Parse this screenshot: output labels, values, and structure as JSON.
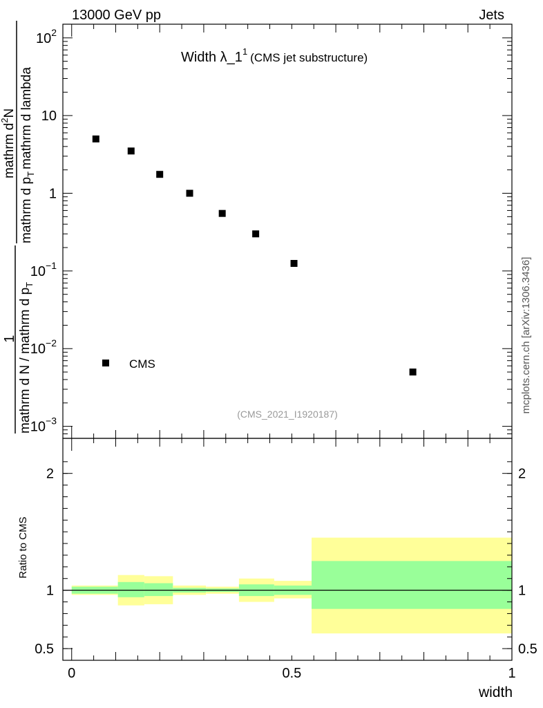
{
  "header": {
    "left": "13000 GeV pp",
    "right": "Jets"
  },
  "plot_title": {
    "main": "Width λ_1",
    "superscript": "1",
    "sub": "(CMS jet substructure)"
  },
  "y_label_upper": {
    "one": "1",
    "denominator": "mathrm d N / mathrm d p",
    "denominator_sub": "T",
    "numerator_prefix": "mathrm d",
    "numerator_sup": "2",
    "numerator_suffix": "N",
    "full_denominator": "mathrm d p",
    "full_denominator_sub": "T",
    "full_denominator_tail": "mathrm d lambda"
  },
  "y_label_lower": "Ratio to CMS",
  "x_label": "width",
  "watermark": "(CMS_2021_I1920187)",
  "side_text": "mcplots.cern.ch [arXiv:1306.3436]",
  "colors": {
    "band_outer": "#ffff99",
    "band_inner": "#99ff99",
    "marker": "#000000"
  },
  "chart_data": {
    "type": "scatter",
    "upper": {
      "y_scale": "log",
      "ylim": [
        0.0007,
        150
      ],
      "xlim": [
        -0.02,
        1.0
      ],
      "series": [
        {
          "name": "CMS",
          "x": [
            0.055,
            0.135,
            0.2,
            0.268,
            0.342,
            0.418,
            0.505,
            0.775
          ],
          "y": [
            5.0,
            3.5,
            1.75,
            1.0,
            0.55,
            0.3,
            0.125,
            0.005
          ]
        }
      ],
      "y_ticks": [
        {
          "value": 100,
          "base": "10",
          "exp": "2"
        },
        {
          "value": 10,
          "base": "10",
          "exp": ""
        },
        {
          "value": 1,
          "base": "1",
          "exp": ""
        },
        {
          "value": 0.1,
          "base": "10",
          "exp": "−1"
        },
        {
          "value": 0.01,
          "base": "10",
          "exp": "−2"
        },
        {
          "value": 0.001,
          "base": "10",
          "exp": "−3"
        }
      ],
      "legend": "CMS",
      "legend_position": "lower-left"
    },
    "lower": {
      "ylim": [
        0.4,
        2.3
      ],
      "y_ticks": [
        {
          "value": 0.5,
          "label": "0.5"
        },
        {
          "value": 1,
          "label": "1"
        },
        {
          "value": 2,
          "label": "2"
        }
      ],
      "bins": [
        {
          "x0": 0.0,
          "x1": 0.105,
          "inner": [
            0.97,
            1.03
          ],
          "outer": [
            0.96,
            1.04
          ]
        },
        {
          "x0": 0.105,
          "x1": 0.165,
          "inner": [
            0.94,
            1.07
          ],
          "outer": [
            0.87,
            1.13
          ]
        },
        {
          "x0": 0.165,
          "x1": 0.23,
          "inner": [
            0.95,
            1.06
          ],
          "outer": [
            0.88,
            1.12
          ]
        },
        {
          "x0": 0.23,
          "x1": 0.305,
          "inner": [
            0.98,
            1.02
          ],
          "outer": [
            0.96,
            1.04
          ]
        },
        {
          "x0": 0.305,
          "x1": 0.38,
          "inner": [
            0.985,
            1.015
          ],
          "outer": [
            0.97,
            1.03
          ]
        },
        {
          "x0": 0.38,
          "x1": 0.46,
          "inner": [
            0.95,
            1.05
          ],
          "outer": [
            0.9,
            1.1
          ]
        },
        {
          "x0": 0.46,
          "x1": 0.545,
          "inner": [
            0.96,
            1.04
          ],
          "outer": [
            0.93,
            1.08
          ]
        },
        {
          "x0": 0.545,
          "x1": 1.0,
          "inner": [
            0.84,
            1.25
          ],
          "outer": [
            0.63,
            1.45
          ]
        }
      ]
    },
    "x_ticks": [
      {
        "value": 0,
        "label": "0"
      },
      {
        "value": 0.5,
        "label": "0.5"
      },
      {
        "value": 1,
        "label": "1"
      }
    ]
  }
}
